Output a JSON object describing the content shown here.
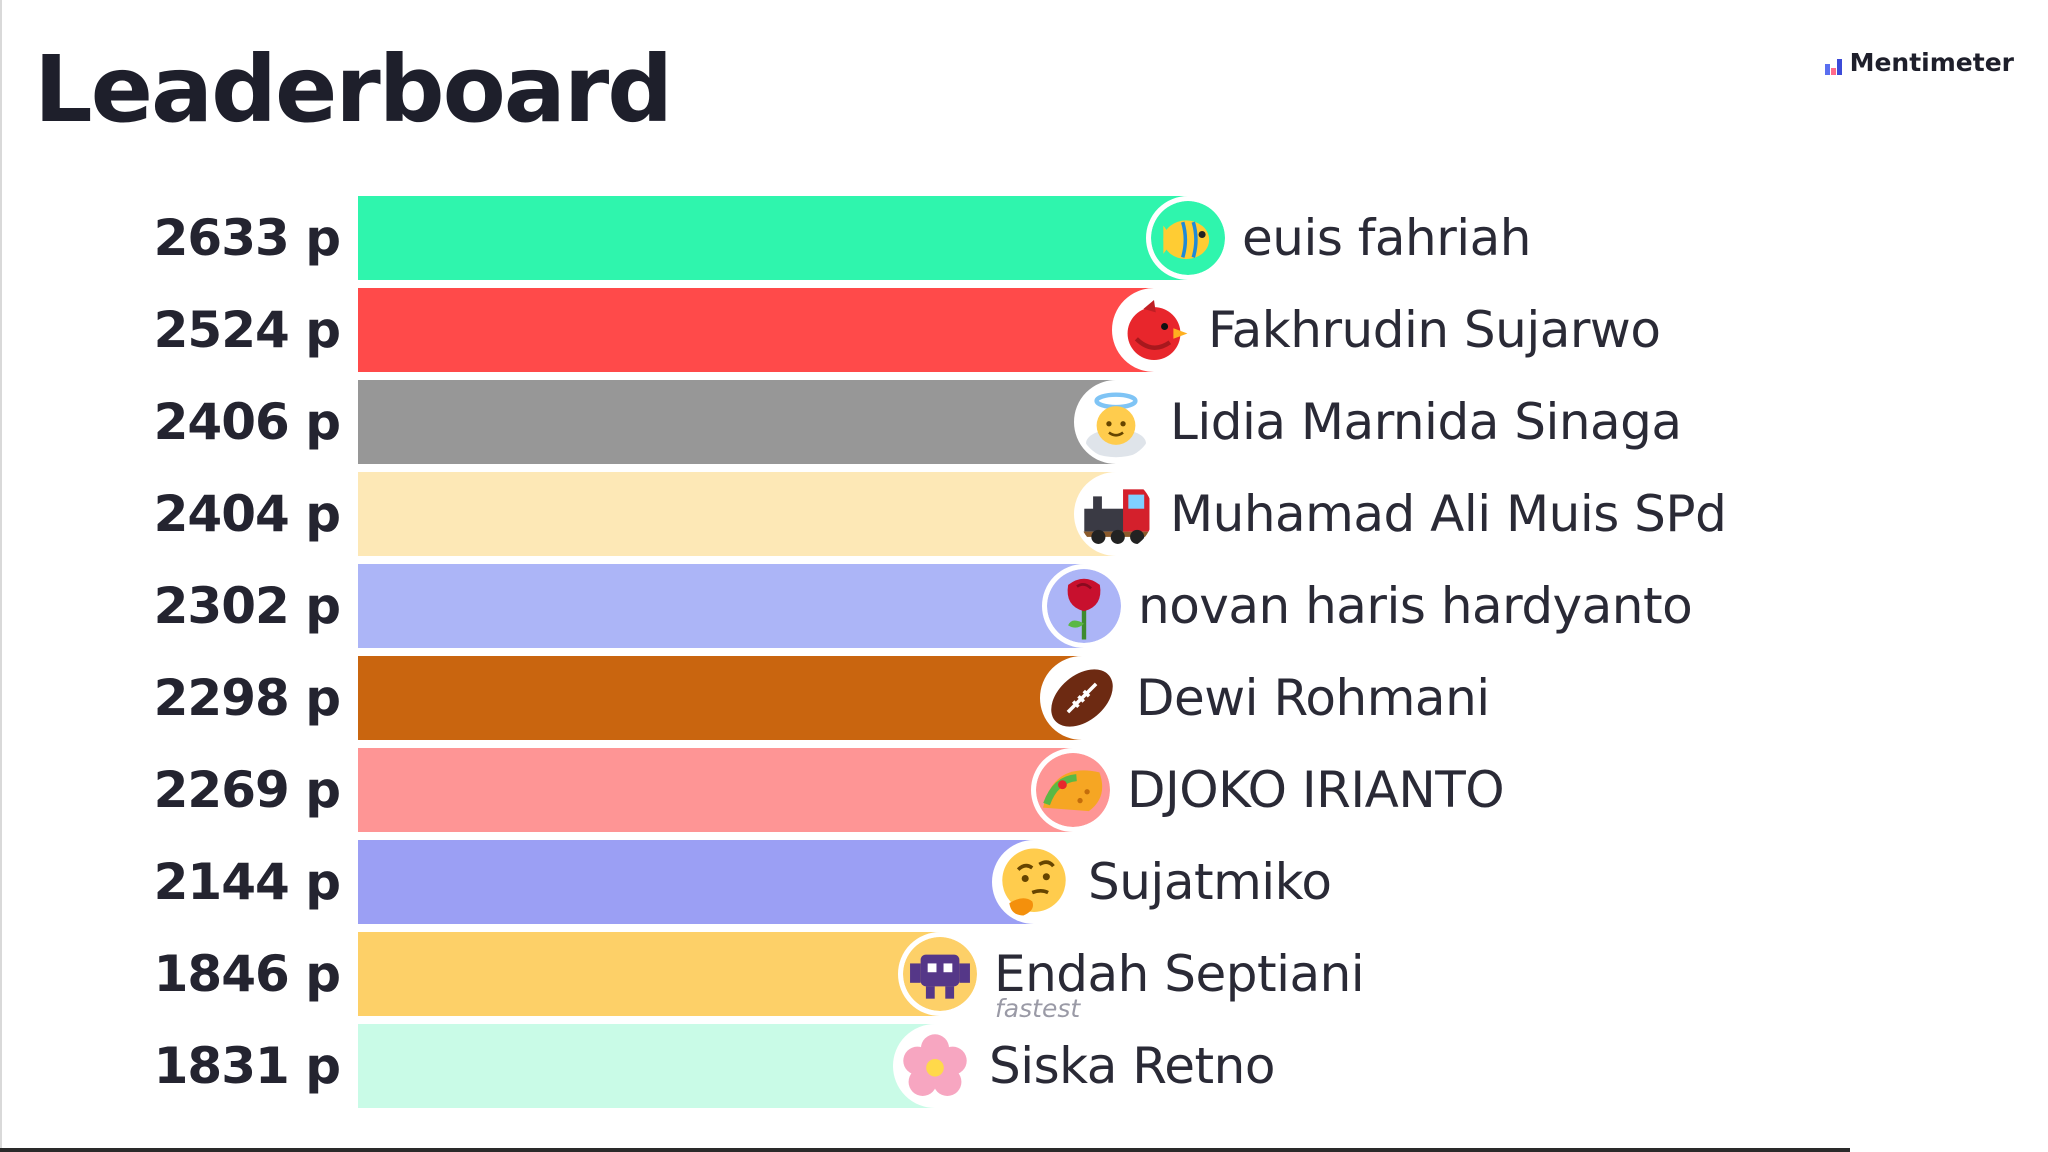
{
  "header": {
    "title": "Leaderboard",
    "brand": "Mentimeter"
  },
  "leaderboard": {
    "max_score": 2633,
    "rows": [
      {
        "score_label": "2633 p",
        "score": 2633,
        "name": "euis fahriah",
        "color": "#2ff5ad",
        "icon": "tropical-fish-icon"
      },
      {
        "score_label": "2524 p",
        "score": 2524,
        "name": "Fakhrudin Sujarwo",
        "color": "#ff4a4a",
        "icon": "red-bird-icon"
      },
      {
        "score_label": "2406 p",
        "score": 2406,
        "name": "Lidia Marnida Sinaga",
        "color": "#979797",
        "icon": "angel-face-icon"
      },
      {
        "score_label": "2404 p",
        "score": 2404,
        "name": "Muhamad Ali Muis SPd",
        "color": "#fde8b6",
        "icon": "steam-train-icon"
      },
      {
        "score_label": "2302 p",
        "score": 2302,
        "name": "novan haris hardyanto",
        "color": "#acb5f7",
        "icon": "rose-icon"
      },
      {
        "score_label": "2298 p",
        "score": 2298,
        "name": "Dewi Rohmani",
        "color": "#c9650f",
        "icon": "football-icon"
      },
      {
        "score_label": "2269 p",
        "score": 2269,
        "name": "DJOKO IRIANTO",
        "color": "#fe9595",
        "icon": "taco-icon"
      },
      {
        "score_label": "2144 p",
        "score": 2144,
        "name": "Sujatmiko",
        "color": "#9b9ff4",
        "icon": "thinking-face-icon"
      },
      {
        "score_label": "1846 p",
        "score": 1846,
        "name": "Endah Septiani",
        "color": "#fdd068",
        "icon": "space-invader-icon"
      },
      {
        "score_label": "1831 p",
        "score": 1831,
        "name": "Siska Retno",
        "color": "#c9fbe7",
        "icon": "cherry-blossom-icon",
        "tag": "fastest"
      }
    ]
  }
}
